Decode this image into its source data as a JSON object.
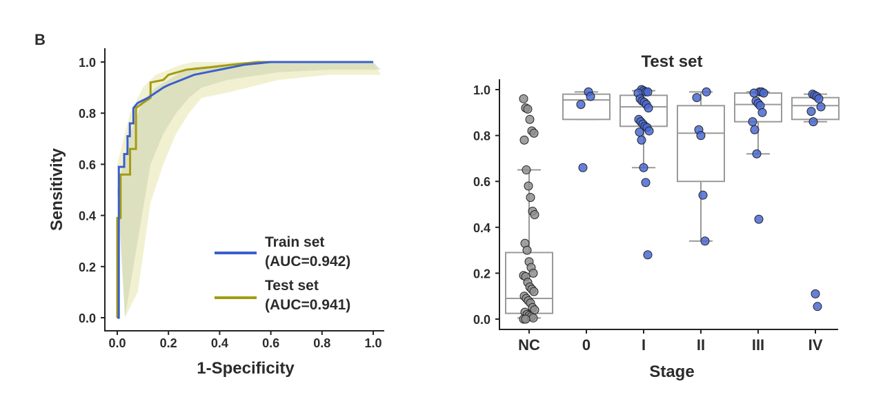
{
  "panel_label": "B",
  "chart_data": [
    {
      "type": "line",
      "title": "",
      "xlabel": "1-Specificity",
      "ylabel": "Sensitivity",
      "xlim": [
        0,
        1
      ],
      "ylim": [
        0,
        1
      ],
      "xticks": [
        "0.0",
        "0.2",
        "0.4",
        "0.6",
        "0.8",
        "1.0"
      ],
      "yticks": [
        "0.0",
        "0.2",
        "0.4",
        "0.6",
        "0.8",
        "1.0"
      ],
      "grid": false,
      "legend_position": "bottom-right",
      "series": [
        {
          "name": "Train set",
          "label_line2": "(AUC=0.942)",
          "color": "#3a5fcd",
          "x": [
            0,
            0.006,
            0.006,
            0.027,
            0.027,
            0.04,
            0.04,
            0.049,
            0.049,
            0.063,
            0.063,
            0.08,
            0.1,
            0.12,
            0.15,
            0.18,
            0.2,
            0.25,
            0.3,
            0.35,
            0.4,
            0.5,
            0.6,
            1.0
          ],
          "y": [
            0,
            0.0,
            0.59,
            0.59,
            0.64,
            0.64,
            0.71,
            0.71,
            0.76,
            0.76,
            0.82,
            0.84,
            0.85,
            0.86,
            0.88,
            0.9,
            0.91,
            0.93,
            0.95,
            0.96,
            0.97,
            0.99,
            1.0,
            1.0
          ],
          "band_upper": [
            0.5,
            0.72,
            0.85,
            0.9,
            0.93,
            0.96,
            0.98,
            0.99,
            1.0,
            1.0,
            1.0
          ],
          "band_lower": [
            0.0,
            0.3,
            0.6,
            0.72,
            0.8,
            0.86,
            0.9,
            0.93,
            0.96,
            0.97,
            0.97
          ]
        },
        {
          "name": "Test set",
          "label_line2": "(AUC=0.941)",
          "color": "#a39b12",
          "x": [
            0,
            0.0,
            0.013,
            0.013,
            0.05,
            0.05,
            0.073,
            0.073,
            0.1,
            0.13,
            0.13,
            0.18,
            0.2,
            0.27,
            0.37,
            0.45,
            0.55,
            1.0
          ],
          "y": [
            0,
            0.39,
            0.39,
            0.56,
            0.56,
            0.66,
            0.66,
            0.82,
            0.84,
            0.86,
            0.92,
            0.93,
            0.95,
            0.97,
            0.98,
            0.99,
            1.0,
            1.0
          ],
          "band_upper": [
            0.6,
            0.8,
            0.9,
            0.95,
            0.97,
            0.99,
            1.0,
            1.0,
            1.0,
            1.0,
            1.0
          ],
          "band_lower": [
            0.0,
            0.1,
            0.45,
            0.6,
            0.72,
            0.8,
            0.86,
            0.88,
            0.93,
            0.95,
            0.95
          ]
        }
      ],
      "band_x": [
        0,
        0.05,
        0.1,
        0.15,
        0.2,
        0.25,
        0.3,
        0.4,
        0.6,
        0.8,
        1.0
      ]
    },
    {
      "type": "box",
      "title": "Test set",
      "xlabel": "Stage",
      "ylabel": "",
      "ylim": [
        0,
        1
      ],
      "yticks": [
        "0.0",
        "0.2",
        "0.4",
        "0.6",
        "0.8",
        "1.0"
      ],
      "grid": false,
      "categories": [
        "NC",
        "0",
        "I",
        "II",
        "III",
        "IV"
      ],
      "box_color": "#999999",
      "point_colors": {
        "NC": "#8f8f8f",
        "stage": "#4a6ad2"
      },
      "boxes": [
        {
          "whisker_low": 0.005,
          "q1": 0.025,
          "median": 0.09,
          "q3": 0.29,
          "whisker_high": 0.65
        },
        {
          "whisker_low": 0.87,
          "q1": 0.87,
          "median": 0.955,
          "q3": 0.98,
          "whisker_high": 0.99
        },
        {
          "whisker_low": 0.66,
          "q1": 0.84,
          "median": 0.925,
          "q3": 0.975,
          "whisker_high": 0.995
        },
        {
          "whisker_low": 0.34,
          "q1": 0.6,
          "median": 0.81,
          "q3": 0.93,
          "whisker_high": 0.99
        },
        {
          "whisker_low": 0.72,
          "q1": 0.86,
          "median": 0.935,
          "q3": 0.985,
          "whisker_high": 0.99
        },
        {
          "whisker_low": 0.86,
          "q1": 0.87,
          "median": 0.93,
          "q3": 0.965,
          "whisker_high": 0.98
        }
      ],
      "points": [
        [
          0.96,
          0.92,
          0.915,
          0.87,
          0.82,
          0.81,
          0.78,
          0.65,
          0.58,
          0.53,
          0.47,
          0.455,
          0.33,
          0.3,
          0.25,
          0.225,
          0.2,
          0.19,
          0.185,
          0.16,
          0.14,
          0.13,
          0.12,
          0.1,
          0.09,
          0.08,
          0.07,
          0.05,
          0.04,
          0.03,
          0.02,
          0.015,
          0.01,
          0.005,
          0.0,
          0.0
        ],
        [
          0.99,
          0.97,
          0.935,
          0.66
        ],
        [
          1.0,
          0.995,
          0.99,
          0.99,
          0.985,
          0.96,
          0.95,
          0.945,
          0.935,
          0.92,
          0.87,
          0.86,
          0.85,
          0.84,
          0.835,
          0.82,
          0.815,
          0.78,
          0.66,
          0.595,
          0.28
        ],
        [
          0.99,
          0.965,
          0.825,
          0.8,
          0.54,
          0.34
        ],
        [
          0.99,
          0.99,
          0.985,
          0.985,
          0.95,
          0.94,
          0.93,
          0.9,
          0.86,
          0.825,
          0.72,
          0.435
        ],
        [
          0.98,
          0.975,
          0.97,
          0.96,
          0.925,
          0.905,
          0.86,
          0.11,
          0.055
        ]
      ]
    }
  ]
}
